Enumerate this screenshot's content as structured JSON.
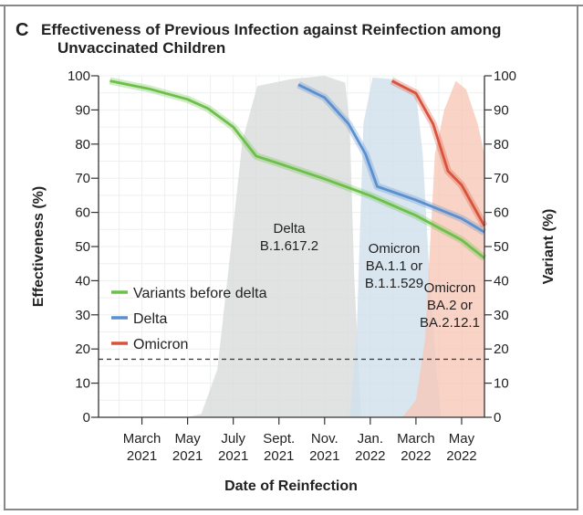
{
  "chart_data": {
    "type": "line",
    "panel_letter": "C",
    "title_line1": "Effectiveness of Previous Infection against Reinfection among",
    "title_line2": "Unvaccinated Children",
    "xlabel": "Date of Reinfection",
    "ylabel": "Effectiveness (%)",
    "ylabel_right": "Variant (%)",
    "x_units": "months since Jan. 2021",
    "xlim": [
      0.1,
      17.0
    ],
    "ylim": [
      0,
      100
    ],
    "yticks": [
      0,
      10,
      20,
      30,
      40,
      50,
      60,
      70,
      80,
      90,
      100
    ],
    "xticks": [
      {
        "x": 2,
        "line1": "March",
        "line2": "2021"
      },
      {
        "x": 4,
        "line1": "May",
        "line2": "2021"
      },
      {
        "x": 6,
        "line1": "July",
        "line2": "2021"
      },
      {
        "x": 8,
        "line1": "Sept.",
        "line2": "2021"
      },
      {
        "x": 10,
        "line1": "Nov.",
        "line2": "2021"
      },
      {
        "x": 12,
        "line1": "Jan.",
        "line2": "2022"
      },
      {
        "x": 14,
        "line1": "March",
        "line2": "2022"
      },
      {
        "x": 16,
        "line1": "May",
        "line2": "2022"
      }
    ],
    "reference_line": 17,
    "series": [
      {
        "name": "Variants before delta",
        "color": "#6cc04a",
        "points": [
          [
            0.6,
            98.5
          ],
          [
            2.3,
            96.2
          ],
          [
            4,
            93.1
          ],
          [
            4.9,
            90.4
          ],
          [
            6,
            85
          ],
          [
            7,
            76.5
          ],
          [
            8,
            74.3
          ],
          [
            10,
            69.8
          ],
          [
            12,
            64.9
          ],
          [
            14,
            59.1
          ],
          [
            16,
            51.9
          ],
          [
            17,
            46.6
          ]
        ]
      },
      {
        "name": "Delta",
        "color": "#5a8fd0",
        "points": [
          [
            8.85,
            97.4
          ],
          [
            10,
            93.6
          ],
          [
            11.05,
            85.9
          ],
          [
            11.8,
            77
          ],
          [
            12.3,
            67.6
          ],
          [
            14,
            63.6
          ],
          [
            16,
            58.2
          ],
          [
            17,
            54.2
          ]
        ]
      },
      {
        "name": "Omicron",
        "color": "#d9533a",
        "points": [
          [
            12.95,
            98.5
          ],
          [
            14,
            94.9
          ],
          [
            14.75,
            85.9
          ],
          [
            15.4,
            72.1
          ],
          [
            16,
            68
          ],
          [
            17,
            56
          ]
        ]
      }
    ],
    "variant_areas": [
      {
        "label_line1": "Delta",
        "label_line2": "B.1.617.2",
        "label_line3": "",
        "color": "#d9dcdc",
        "points": [
          [
            4,
            0
          ],
          [
            4.6,
            1
          ],
          [
            5.3,
            14
          ],
          [
            5.9,
            50
          ],
          [
            6.4,
            81
          ],
          [
            7.05,
            97
          ],
          [
            8.5,
            99
          ],
          [
            10,
            100
          ],
          [
            10.9,
            98
          ],
          [
            11.1,
            86
          ],
          [
            11.3,
            41
          ],
          [
            11.6,
            0
          ]
        ]
      },
      {
        "label_line1": "Omicron",
        "label_line2": "BA.1.1 or",
        "label_line3": "B.1.1.529",
        "color": "#cfe0ec",
        "points": [
          [
            11.1,
            0
          ],
          [
            11.4,
            23
          ],
          [
            11.7,
            86
          ],
          [
            12.1,
            99.5
          ],
          [
            13,
            99
          ],
          [
            14,
            95
          ],
          [
            14.3,
            77
          ],
          [
            14.6,
            41
          ],
          [
            14.9,
            14
          ],
          [
            15.1,
            0
          ]
        ]
      },
      {
        "label_line1": "Omicron",
        "label_line2": "BA.2 or",
        "label_line3": "BA.2.12.1",
        "color": "#f6c8b8",
        "points": [
          [
            13.4,
            0
          ],
          [
            14,
            5
          ],
          [
            14.4,
            23
          ],
          [
            14.83,
            77
          ],
          [
            15.24,
            90
          ],
          [
            15.74,
            98.5
          ],
          [
            16.2,
            96
          ],
          [
            16.7,
            86
          ],
          [
            17,
            77
          ]
        ]
      }
    ]
  }
}
